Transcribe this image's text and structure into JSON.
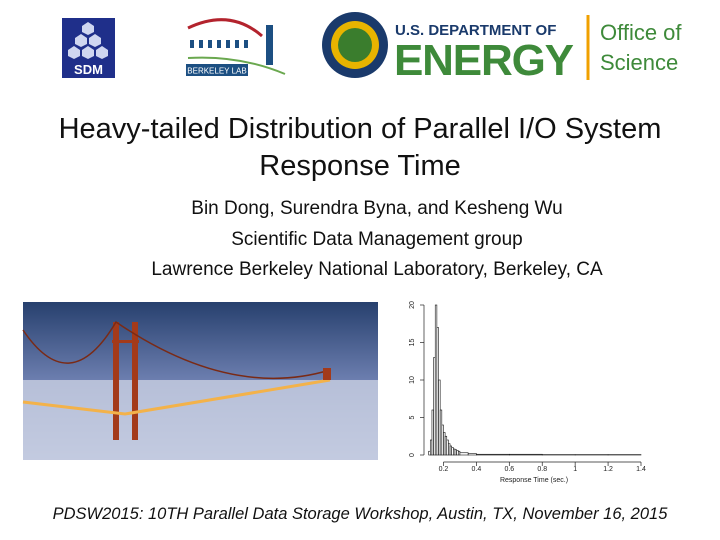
{
  "logos": {
    "sdm": "SDM",
    "berkeley_lab": "BERKELEY LAB",
    "doe_department": "U.S. DEPARTMENT OF",
    "doe_energy": "ENERGY",
    "office_lines": [
      "Office of",
      "Science"
    ]
  },
  "title_lines": [
    "Heavy-tailed Distribution of Parallel I/O System",
    "Response Time"
  ],
  "authors": "Bin Dong,  Surendra Byna, and Kesheng Wu",
  "group": "Scientific Data Management group",
  "affiliation": "Lawrence Berkeley National Laboratory, Berkeley, CA",
  "chart_data": {
    "type": "histogram",
    "xlabel": "Response Time (sec.)",
    "bins": [
      0.1,
      0.11,
      0.12,
      0.13,
      0.14,
      0.15,
      0.16,
      0.17,
      0.18,
      0.19,
      0.2,
      0.21,
      0.22,
      0.23,
      0.24,
      0.25,
      0.26,
      0.27,
      0.28,
      0.29,
      0.3,
      0.35,
      0.4,
      0.6,
      0.8,
      1.0,
      1.2,
      1.4
    ],
    "values": [
      0,
      0.5,
      2,
      6,
      13,
      20,
      17,
      10,
      6,
      4,
      3,
      2.5,
      2,
      1.5,
      1.2,
      1,
      0.8,
      0.7,
      0.6,
      0.5,
      0.3,
      0.2,
      0.1,
      0.1,
      0.05,
      0.05,
      0.05
    ],
    "color": "#ffffff",
    "xlim": [
      0.1,
      1.4
    ],
    "ylim": [
      0,
      20
    ],
    "xticks": [
      0.2,
      0.4,
      0.6,
      0.8,
      1.0,
      1.2,
      1.4
    ],
    "yticks": [
      0,
      5,
      10,
      15,
      20
    ]
  },
  "footer": "PDSW2015: 10TH Parallel Data Storage Workshop, Austin, TX, November 16, 2015"
}
